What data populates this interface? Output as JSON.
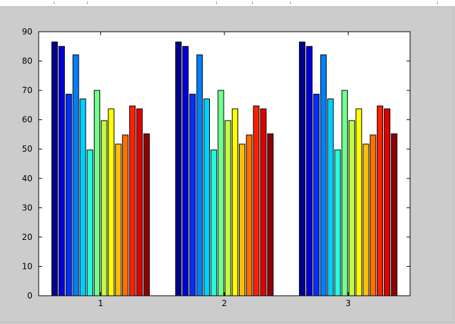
{
  "chart_data": {
    "type": "bar",
    "title": "",
    "xlabel": "",
    "ylabel": "",
    "categories": [
      "1",
      "2",
      "3"
    ],
    "ylim": [
      0,
      90
    ],
    "yticks": [
      0,
      10,
      20,
      30,
      40,
      50,
      60,
      70,
      80,
      90
    ],
    "grid": false,
    "legend": "none",
    "colors": [
      "#00008f",
      "#0000df",
      "#0030ff",
      "#0080ff",
      "#00cfff",
      "#20ffdf",
      "#70ff8f",
      "#bfff40",
      "#ffff00",
      "#ffbf00",
      "#ff7000",
      "#ff2000",
      "#df0000",
      "#8f0000"
    ],
    "series": [
      {
        "values": [
          86.5,
          86.5,
          86.5
        ]
      },
      {
        "values": [
          85.0,
          85.0,
          85.0
        ]
      },
      {
        "values": [
          68.7,
          68.7,
          68.7
        ]
      },
      {
        "values": [
          82.1,
          82.1,
          82.1
        ]
      },
      {
        "values": [
          67.1,
          67.1,
          67.1
        ]
      },
      {
        "values": [
          49.7,
          49.7,
          49.7
        ]
      },
      {
        "values": [
          70.0,
          70.0,
          70.0
        ]
      },
      {
        "values": [
          59.7,
          59.7,
          59.7
        ]
      },
      {
        "values": [
          63.7,
          63.7,
          63.7
        ]
      },
      {
        "values": [
          51.7,
          51.7,
          51.7
        ]
      },
      {
        "values": [
          54.8,
          54.8,
          54.8
        ]
      },
      {
        "values": [
          64.7,
          64.7,
          64.7
        ]
      },
      {
        "values": [
          63.7,
          63.7,
          63.7
        ]
      },
      {
        "values": [
          55.2,
          55.2,
          55.2
        ]
      }
    ]
  }
}
